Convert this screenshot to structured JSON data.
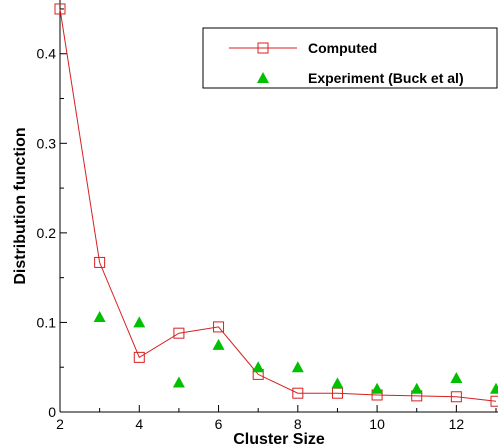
{
  "chart_data": {
    "type": "line",
    "xlabel": "Cluster Size",
    "ylabel": "Distribution function",
    "xlim": [
      2,
      13
    ],
    "ylim": [
      0,
      0.46
    ],
    "x_ticks": [
      2,
      4,
      6,
      8,
      10,
      12
    ],
    "y_ticks": [
      0,
      0.1,
      0.2,
      0.3,
      0.4
    ],
    "legend_position": "top-right",
    "series": [
      {
        "name": "Computed",
        "marker": "open-square",
        "line": true,
        "color": "#d62020",
        "x": [
          2,
          3,
          4,
          5,
          6,
          7,
          8,
          9,
          10,
          11,
          12,
          13
        ],
        "y": [
          0.45,
          0.167,
          0.061,
          0.088,
          0.095,
          0.042,
          0.021,
          0.021,
          0.019,
          0.018,
          0.017,
          0.012
        ]
      },
      {
        "name": "Experiment (Buck et al)",
        "marker": "filled-triangle",
        "line": false,
        "color": "#00c000",
        "x": [
          3,
          4,
          5,
          6,
          7,
          8,
          9,
          10,
          11,
          12,
          13
        ],
        "y": [
          0.106,
          0.1,
          0.033,
          0.075,
          0.05,
          0.05,
          0.032,
          0.026,
          0.026,
          0.038,
          0.026
        ]
      }
    ]
  }
}
